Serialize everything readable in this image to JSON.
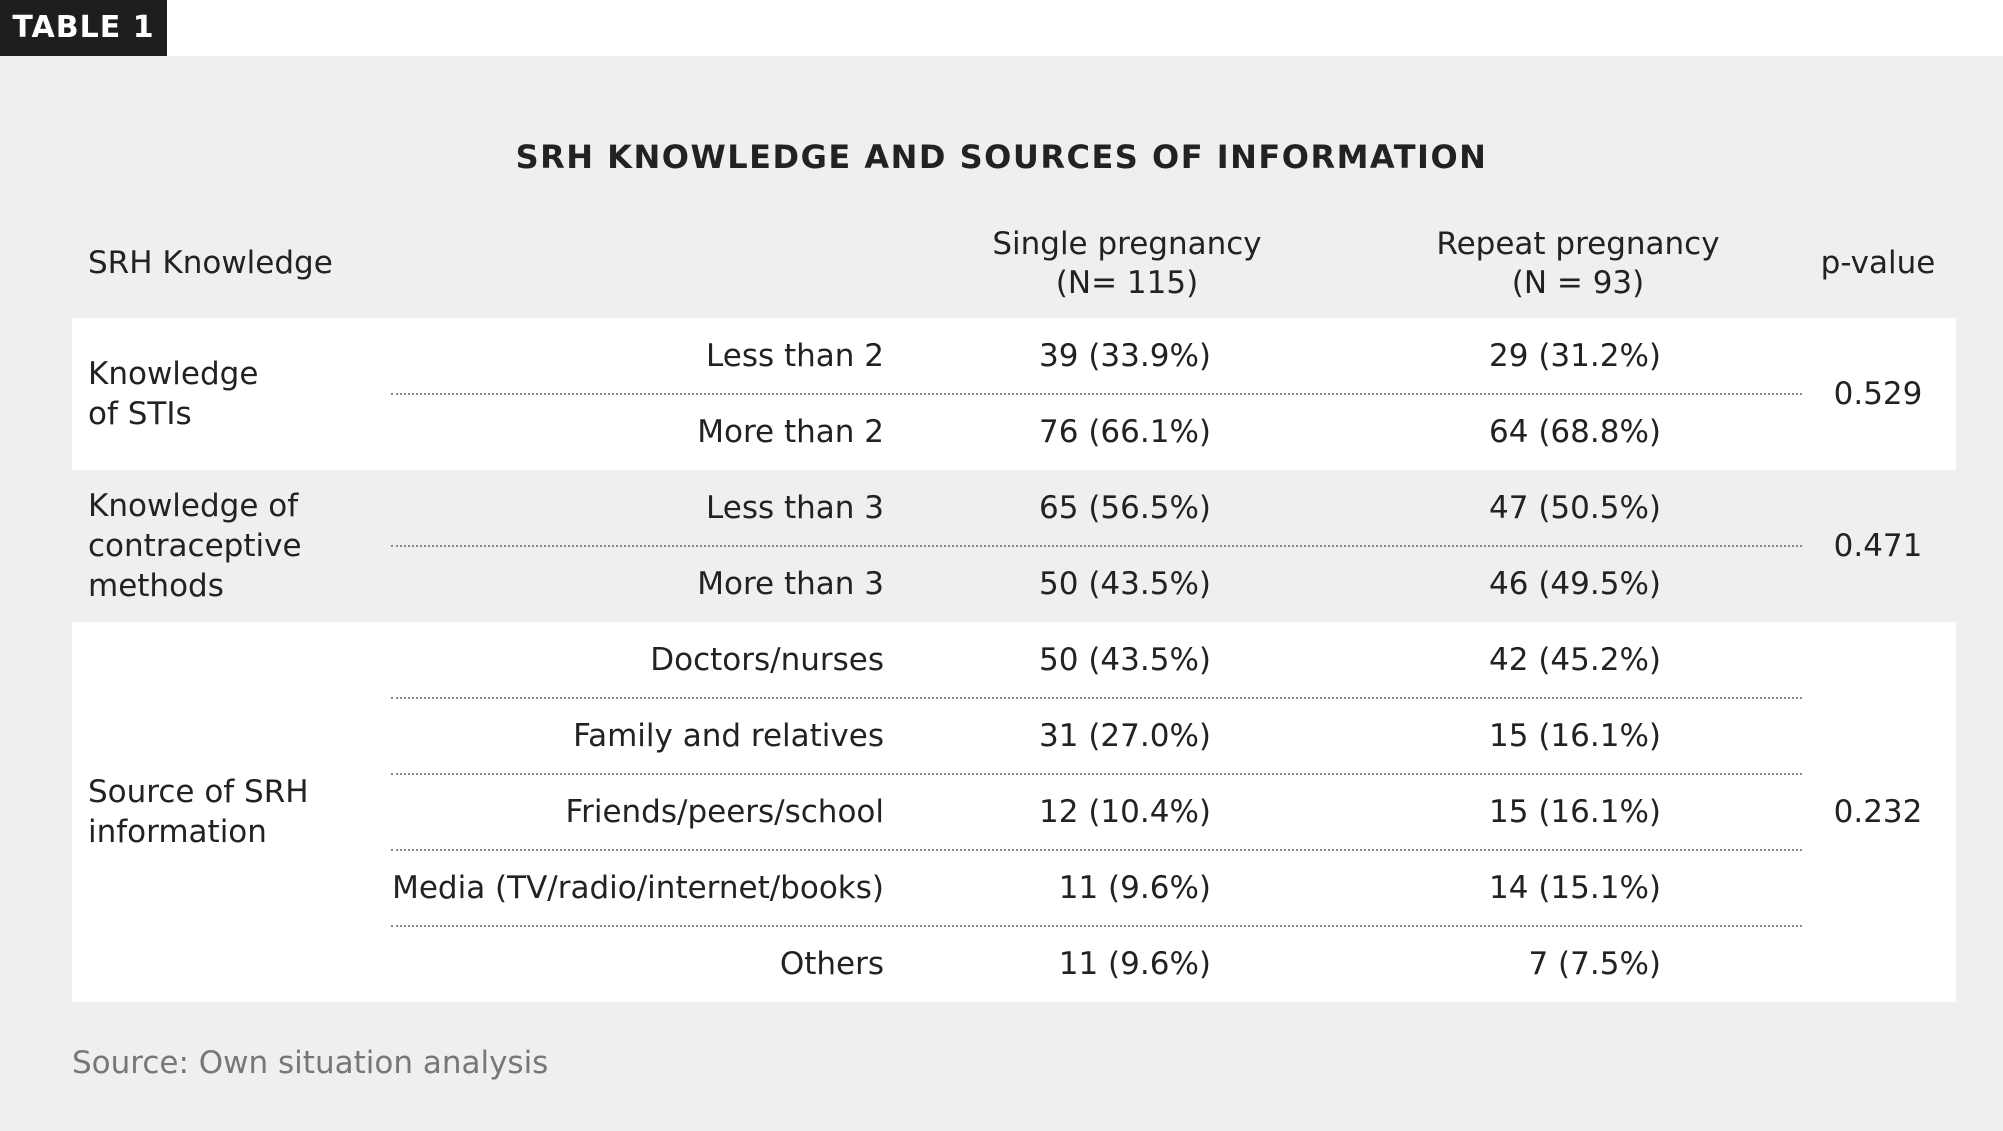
{
  "badge": "TABLE 1",
  "title": "SRH KNOWLEDGE AND SOURCES OF INFORMATION",
  "header": {
    "knowledge": "SRH Knowledge",
    "single": [
      "Single pregnancy",
      "(N= 115)"
    ],
    "repeat": [
      "Repeat pregnancy",
      "(N = 93)"
    ],
    "p_value": "p-value"
  },
  "groups": [
    {
      "label": [
        "Knowledge",
        "of STIs"
      ],
      "p_value": "0.529",
      "rows": [
        [
          "Less than 2",
          "39 (33.9%)",
          "29 (31.2%)"
        ],
        [
          "More than 2",
          "76 (66.1%)",
          "64 (68.8%)"
        ]
      ]
    },
    {
      "label": [
        "Knowledge of",
        "contraceptive",
        "methods"
      ],
      "p_value": "0.471",
      "rows": [
        [
          "Less than 3",
          "65 (56.5%)",
          "47 (50.5%)"
        ],
        [
          "More than 3",
          "50 (43.5%)",
          "46 (49.5%)"
        ]
      ]
    },
    {
      "label": [
        "Source of SRH",
        "information"
      ],
      "p_value": "0.232",
      "rows": [
        [
          "Doctors/nurses",
          "50 (43.5%)",
          "42 (45.2%)"
        ],
        [
          "Family and relatives",
          "31 (27.0%)",
          "15 (16.1%)"
        ],
        [
          "Friends/peers/school",
          "12 (10.4%)",
          "15 (16.1%)"
        ],
        [
          "Media (TV/radio/internet/books)",
          "11 (9.6%)",
          "14 (15.1%)"
        ],
        [
          "Others",
          "11 (9.6%)",
          "7 (7.5%)"
        ]
      ]
    }
  ],
  "source": "Source: Own situation analysis"
}
